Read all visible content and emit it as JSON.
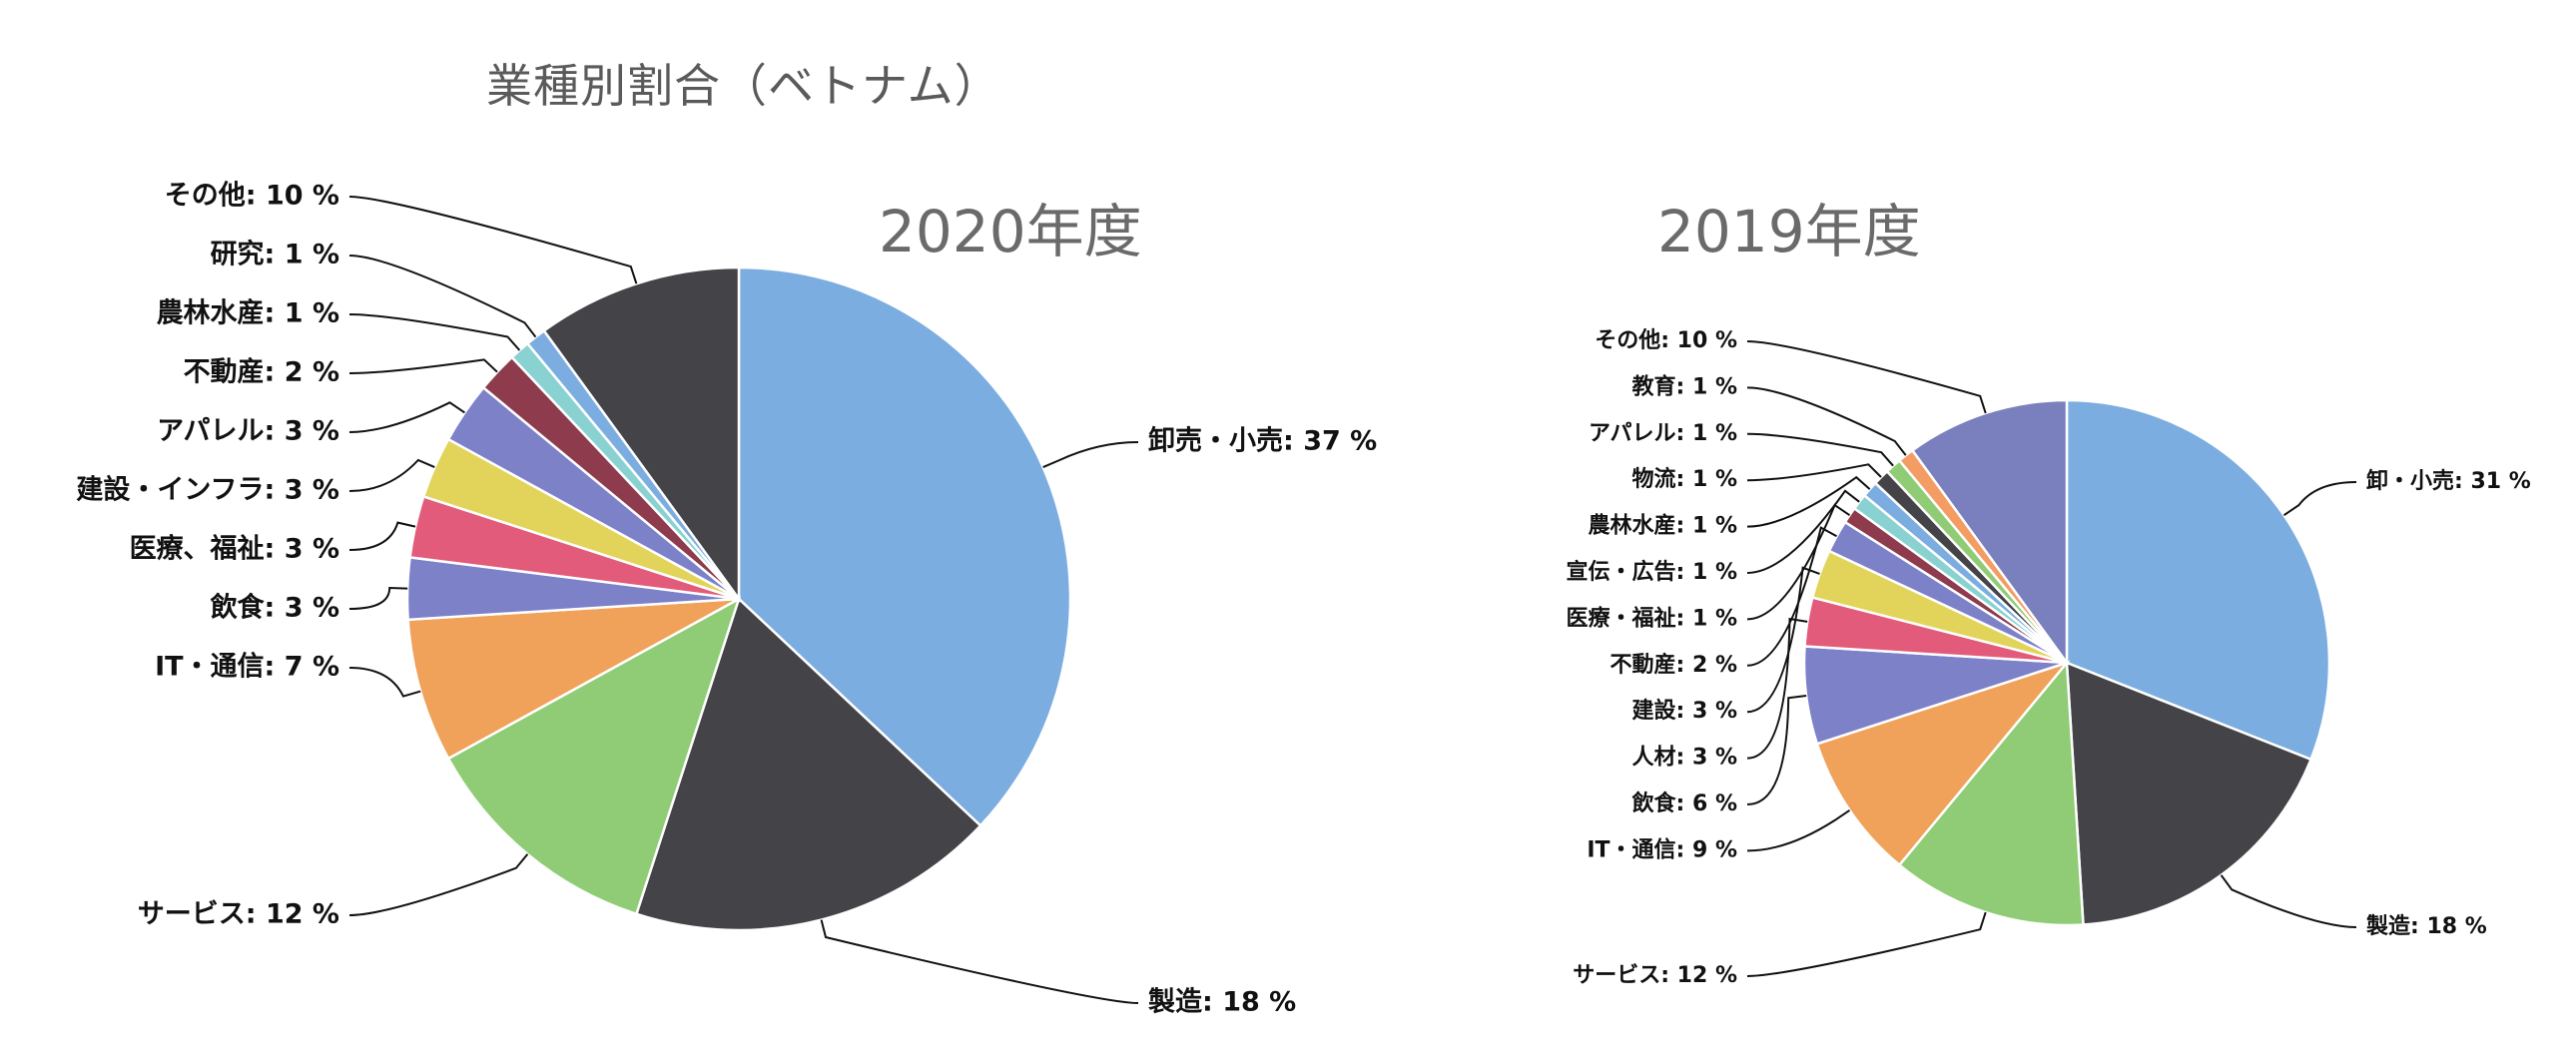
{
  "title": "業種別割合（ベトナム）",
  "colors": {
    "blue": "#7cade0",
    "dark": "#434348",
    "green": "#90cc76",
    "orange": "#f0a15a",
    "purple": "#7d81c8",
    "pink": "#e35b7a",
    "yellow": "#e2d45a",
    "maroon": "#8d3b4d",
    "teal": "#8ad2d2",
    "slate": "#7a80bd",
    "salmon": "#f39c63"
  },
  "chart_data": [
    {
      "type": "pie",
      "title": "2020年度",
      "slices": [
        {
          "label": "卸売・小売: 37 %",
          "value": 37,
          "color": "#7cade0"
        },
        {
          "label": "製造: 18 %",
          "value": 18,
          "color": "#434348"
        },
        {
          "label": "サービス: 12 %",
          "value": 12,
          "color": "#90cc76"
        },
        {
          "label": "IT・通信: 7 %",
          "value": 7,
          "color": "#f0a15a"
        },
        {
          "label": "飲食: 3 %",
          "value": 3,
          "color": "#7d81c8"
        },
        {
          "label": "医療、福祉: 3 %",
          "value": 3,
          "color": "#e35b7a"
        },
        {
          "label": "建設・インフラ: 3 %",
          "value": 3,
          "color": "#e2d45a"
        },
        {
          "label": "アパレル: 3 %",
          "value": 3,
          "color": "#7d81c8"
        },
        {
          "label": "不動産: 2 %",
          "value": 2,
          "color": "#8d3b4d"
        },
        {
          "label": "農林水産: 1 %",
          "value": 1,
          "color": "#8ad2d2"
        },
        {
          "label": "研究: 1 %",
          "value": 1,
          "color": "#7cade0"
        },
        {
          "label": "その他: 10 %",
          "value": 10,
          "color": "#434348"
        }
      ]
    },
    {
      "type": "pie",
      "title": "2019年度",
      "slices": [
        {
          "label": "卸・小売: 31 %",
          "value": 31,
          "color": "#7cade0"
        },
        {
          "label": "製造: 18 %",
          "value": 18,
          "color": "#434348"
        },
        {
          "label": "サービス: 12 %",
          "value": 12,
          "color": "#90cc76"
        },
        {
          "label": "IT・通信: 9 %",
          "value": 9,
          "color": "#f0a15a"
        },
        {
          "label": "飲食: 6 %",
          "value": 6,
          "color": "#7d81c8"
        },
        {
          "label": "人材: 3 %",
          "value": 3,
          "color": "#e35b7a"
        },
        {
          "label": "建設: 3 %",
          "value": 3,
          "color": "#e2d45a"
        },
        {
          "label": "不動産: 2 %",
          "value": 2,
          "color": "#7d81c8"
        },
        {
          "label": "医療・福祉: 1 %",
          "value": 1,
          "color": "#8d3b4d"
        },
        {
          "label": "宣伝・広告: 1 %",
          "value": 1,
          "color": "#8ad2d2"
        },
        {
          "label": "農林水産: 1 %",
          "value": 1,
          "color": "#7cade0"
        },
        {
          "label": "物流: 1 %",
          "value": 1,
          "color": "#434348"
        },
        {
          "label": "アパレル: 1 %",
          "value": 1,
          "color": "#90cc76"
        },
        {
          "label": "教育: 1 %",
          "value": 1,
          "color": "#f39c63"
        },
        {
          "label": "その他: 10 %",
          "value": 10,
          "color": "#7a80bd"
        }
      ]
    }
  ]
}
